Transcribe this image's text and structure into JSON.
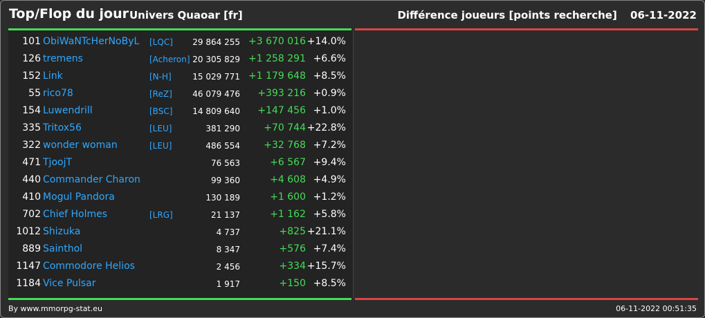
{
  "header": {
    "title": "Top/Flop du jour",
    "universe": "Univers Quaoar [fr]",
    "metric": "Différence joueurs [points recherche]",
    "date": "06-11-2022"
  },
  "table": {
    "rows": [
      {
        "rank": "101",
        "player": "ObiWaNTcHerNoByL",
        "ally": "[LQC]",
        "points": "29 864 255",
        "diff": "+3 670 016",
        "pct": "+14.0%"
      },
      {
        "rank": "126",
        "player": "tremens",
        "ally": "[Acheron]",
        "points": "20 305 829",
        "diff": "+1 258 291",
        "pct": "+6.6%"
      },
      {
        "rank": "152",
        "player": "Link",
        "ally": "[N-H]",
        "points": "15 029 771",
        "diff": "+1 179 648",
        "pct": "+8.5%"
      },
      {
        "rank": "55",
        "player": "rico78",
        "ally": "[ReZ]",
        "points": "46 079 476",
        "diff": "+393 216",
        "pct": "+0.9%"
      },
      {
        "rank": "154",
        "player": "Luwendrill",
        "ally": "[BSC]",
        "points": "14 809 640",
        "diff": "+147 456",
        "pct": "+1.0%"
      },
      {
        "rank": "335",
        "player": "Tritox56",
        "ally": "[LEU]",
        "points": "381 290",
        "diff": "+70 744",
        "pct": "+22.8%"
      },
      {
        "rank": "322",
        "player": "wonder woman",
        "ally": "[LEU]",
        "points": "486 554",
        "diff": "+32 768",
        "pct": "+7.2%"
      },
      {
        "rank": "471",
        "player": "TjoojT",
        "ally": "",
        "points": "76 563",
        "diff": "+6 567",
        "pct": "+9.4%"
      },
      {
        "rank": "440",
        "player": "Commander Charon",
        "ally": "",
        "points": "99 360",
        "diff": "+4 608",
        "pct": "+4.9%"
      },
      {
        "rank": "410",
        "player": "Mogul Pandora",
        "ally": "",
        "points": "130 189",
        "diff": "+1 600",
        "pct": "+1.2%"
      },
      {
        "rank": "702",
        "player": "Chief Holmes",
        "ally": "[LRG]",
        "points": "21 137",
        "diff": "+1 162",
        "pct": "+5.8%"
      },
      {
        "rank": "1012",
        "player": "Shizuka",
        "ally": "",
        "points": "4 737",
        "diff": "+825",
        "pct": "+21.1%"
      },
      {
        "rank": "889",
        "player": "Sainthol",
        "ally": "",
        "points": "8 347",
        "diff": "+576",
        "pct": "+7.4%"
      },
      {
        "rank": "1147",
        "player": "Commodore Helios",
        "ally": "",
        "points": "2 456",
        "diff": "+334",
        "pct": "+15.7%"
      },
      {
        "rank": "1184",
        "player": "Vice Pulsar",
        "ally": "",
        "points": "1 917",
        "diff": "+150",
        "pct": "+8.5%"
      }
    ]
  },
  "footer": {
    "source": "By www.mmorpg-stat.eu",
    "generated": "06-11-2022 00:51:35"
  },
  "colors": {
    "top_accent": "#44dd55",
    "flop_accent": "#dd4444",
    "link": "#2fa8ff",
    "positive": "#44dd55"
  }
}
